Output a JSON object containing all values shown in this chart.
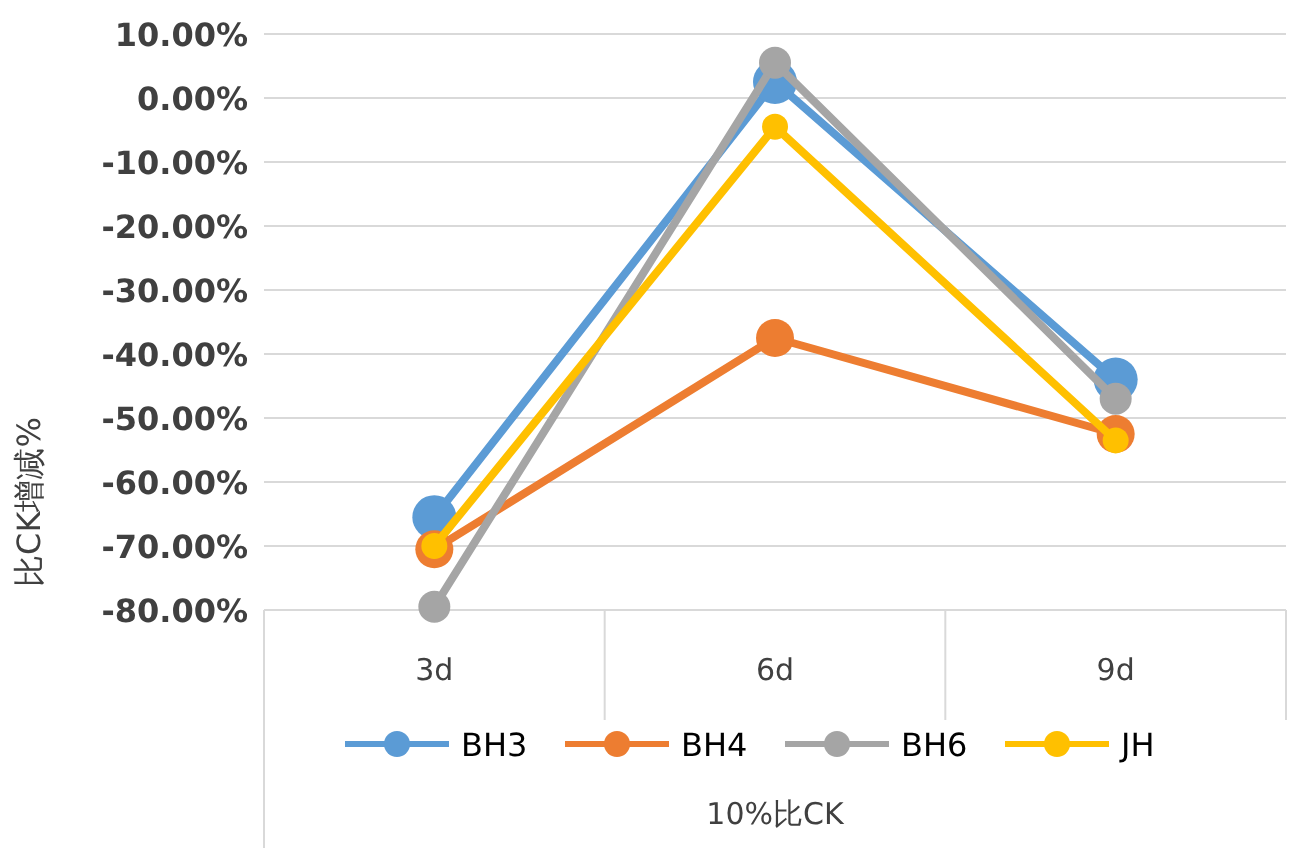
{
  "chart_data": {
    "type": "line",
    "xlabel": "10%比CK",
    "ylabel": "比CK增减%",
    "categories": [
      "3d",
      "6d",
      "9d"
    ],
    "series": [
      {
        "name": "BH3",
        "color": "#5b9bd5",
        "values": [
          -65.5,
          2.5,
          -44
        ]
      },
      {
        "name": "BH4",
        "color": "#ed7d31",
        "values": [
          -70.5,
          -37.5,
          -52.5
        ]
      },
      {
        "name": "BH6",
        "color": "#a5a5a5",
        "values": [
          -79.5,
          5.5,
          -47
        ]
      },
      {
        "name": "JH",
        "color": "#ffc000",
        "values": [
          -70,
          -4.5,
          -53.5
        ]
      }
    ],
    "ylim": [
      -80,
      10
    ],
    "yticks": [
      {
        "value": 10,
        "label": "10.00%"
      },
      {
        "value": 0,
        "label": "0.00%"
      },
      {
        "value": -10,
        "label": "-10.00%"
      },
      {
        "value": -20,
        "label": "-20.00%"
      },
      {
        "value": -30,
        "label": "-30.00%"
      },
      {
        "value": -40,
        "label": "-40.00%"
      },
      {
        "value": -50,
        "label": "-50.00%"
      },
      {
        "value": -60,
        "label": "-60.00%"
      },
      {
        "value": -70,
        "label": "-70.00%"
      },
      {
        "value": -80,
        "label": "-80.00%"
      }
    ],
    "grid": "y",
    "legend": "bottom",
    "marker": "circle",
    "line_style": "solid"
  }
}
